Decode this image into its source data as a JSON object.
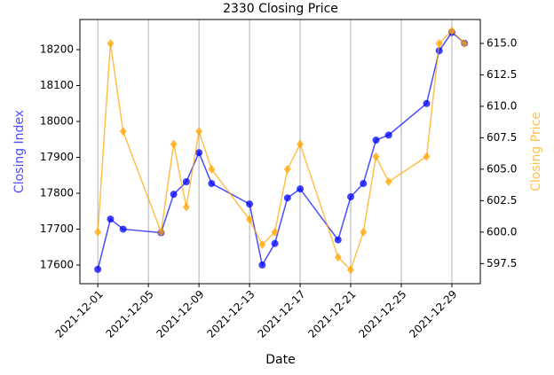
{
  "chart_data": {
    "type": "line",
    "title": "2330 Closing Price",
    "xlabel": "Date",
    "ylabel": "Closing Index",
    "y2label": "Closing Price",
    "x": [
      "2021-12-01",
      "2021-12-02",
      "2021-12-03",
      "2021-12-06",
      "2021-12-07",
      "2021-12-08",
      "2021-12-09",
      "2021-12-10",
      "2021-12-13",
      "2021-12-14",
      "2021-12-15",
      "2021-12-16",
      "2021-12-17",
      "2021-12-20",
      "2021-12-21",
      "2021-12-22",
      "2021-12-23",
      "2021-12-24",
      "2021-12-27",
      "2021-12-28",
      "2021-12-29",
      "2021-12-30"
    ],
    "series": [
      {
        "color": "#0000ff",
        "marker": "circle",
        "axis": "y",
        "values": [
          17588,
          17728,
          17700,
          17690,
          17797,
          17832,
          17913,
          17827,
          17770,
          17600,
          17660,
          17787,
          17812,
          17670,
          17790,
          17827,
          17948,
          17962,
          18050,
          18197,
          18248,
          18218
        ]
      },
      {
        "color": "#ffa500",
        "marker": "diamond",
        "axis": "y2",
        "values": [
          600,
          615,
          608,
          600,
          607,
          602,
          608,
          605,
          601,
          599,
          600,
          605,
          607,
          598,
          597,
          600,
          606,
          604,
          606,
          615,
          616,
          615
        ]
      }
    ],
    "xlim": [
      "2021-11-29T14:00",
      "2021-12-31T06:00"
    ],
    "xticks": [
      "2021-12-01",
      "2021-12-05",
      "2021-12-09",
      "2021-12-13",
      "2021-12-17",
      "2021-12-21",
      "2021-12-25",
      "2021-12-29"
    ],
    "ylim": [
      17548,
      18284
    ],
    "yticks": [
      17600,
      17700,
      17800,
      17900,
      18000,
      18100,
      18200
    ],
    "y2lim": [
      595.9,
      616.9
    ],
    "y2ticks": [
      {
        "value": 597.5,
        "label": "597.5"
      },
      {
        "value": 600,
        "label": "600.0"
      },
      {
        "value": 602.5,
        "label": "602.5"
      },
      {
        "value": 605,
        "label": "605.0"
      },
      {
        "value": 607.5,
        "label": "607.5"
      },
      {
        "value": 610,
        "label": "610.0"
      },
      {
        "value": 612.5,
        "label": "612.5"
      },
      {
        "value": 615,
        "label": "615.0"
      }
    ],
    "grid": "x"
  }
}
